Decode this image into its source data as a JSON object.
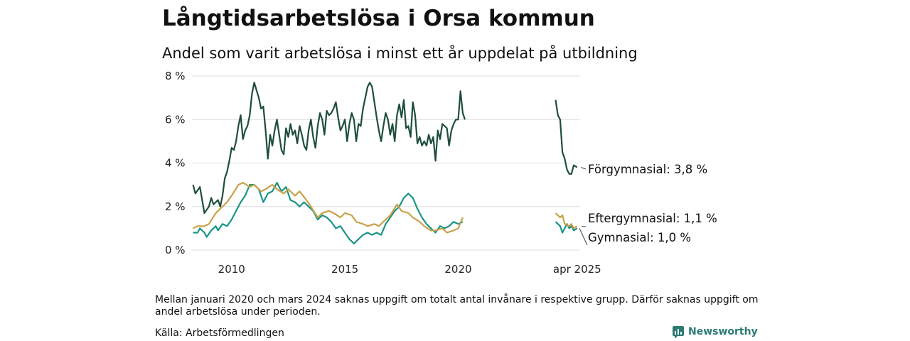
{
  "header": {
    "title": "Långtidsarbetslösa i Orsa kommun",
    "subtitle": "Andel som varit arbetslösa i minst ett år uppdelat på utbildning"
  },
  "footer": {
    "note": "Mellan januari 2020 och mars 2024 saknas uppgift om totalt antal invånare i respektive grupp. Därför saknas uppgift om andel arbetslösa under perioden.",
    "source": "Källa: Arbetsförmedlingen",
    "brand": "Newsworthy"
  },
  "colors": {
    "forgymnasial": "#1e4d3f",
    "gymnasial": "#199488",
    "eftergymnasial": "#c9a24a",
    "grid": "#dddddd",
    "brand": "#2c7a73"
  },
  "chart_data": {
    "type": "line",
    "ylim": [
      0,
      8
    ],
    "yticks": [
      "0 %",
      "2 %",
      "4 %",
      "6 %",
      "8 %"
    ],
    "xticks": [
      "2010",
      "2015",
      "2020",
      "apr 2025"
    ],
    "grid": true,
    "series": [
      {
        "name": "Förgymnasial",
        "end_label": "Förgymnasial: 3,8 %",
        "color_key": "forgymnasial",
        "segments": [
          [
            [
              2008.3,
              3.0
            ],
            [
              2008.4,
              2.6
            ],
            [
              2008.6,
              2.9
            ],
            [
              2008.8,
              1.7
            ],
            [
              2009.0,
              2.0
            ],
            [
              2009.1,
              2.4
            ],
            [
              2009.2,
              2.1
            ],
            [
              2009.4,
              2.3
            ],
            [
              2009.5,
              2.0
            ],
            [
              2009.6,
              2.5
            ],
            [
              2009.7,
              3.3
            ],
            [
              2009.8,
              3.6
            ],
            [
              2009.9,
              4.1
            ],
            [
              2010.0,
              4.7
            ],
            [
              2010.1,
              4.6
            ],
            [
              2010.2,
              5.0
            ],
            [
              2010.3,
              5.7
            ],
            [
              2010.4,
              6.2
            ],
            [
              2010.5,
              5.1
            ],
            [
              2010.6,
              5.5
            ],
            [
              2010.7,
              5.7
            ],
            [
              2010.8,
              6.2
            ],
            [
              2010.9,
              7.2
            ],
            [
              2011.0,
              7.7
            ],
            [
              2011.2,
              7.0
            ],
            [
              2011.3,
              6.5
            ],
            [
              2011.4,
              6.6
            ],
            [
              2011.5,
              5.5
            ],
            [
              2011.6,
              4.2
            ],
            [
              2011.7,
              5.3
            ],
            [
              2011.8,
              4.8
            ],
            [
              2011.9,
              5.5
            ],
            [
              2012.0,
              6.0
            ],
            [
              2012.1,
              5.3
            ],
            [
              2012.2,
              4.6
            ],
            [
              2012.3,
              4.4
            ],
            [
              2012.4,
              5.6
            ],
            [
              2012.5,
              5.2
            ],
            [
              2012.6,
              5.8
            ],
            [
              2012.7,
              5.3
            ],
            [
              2012.8,
              5.5
            ],
            [
              2012.9,
              4.9
            ],
            [
              2013.0,
              5.7
            ],
            [
              2013.1,
              5.3
            ],
            [
              2013.2,
              4.8
            ],
            [
              2013.3,
              4.6
            ],
            [
              2013.4,
              5.5
            ],
            [
              2013.5,
              6.0
            ],
            [
              2013.6,
              5.2
            ],
            [
              2013.7,
              4.7
            ],
            [
              2013.8,
              5.7
            ],
            [
              2013.9,
              6.3
            ],
            [
              2014.0,
              6.0
            ],
            [
              2014.1,
              5.3
            ],
            [
              2014.2,
              6.4
            ],
            [
              2014.3,
              6.2
            ],
            [
              2014.4,
              6.3
            ],
            [
              2014.5,
              6.5
            ],
            [
              2014.6,
              6.8
            ],
            [
              2014.7,
              6.1
            ],
            [
              2014.8,
              5.5
            ],
            [
              2014.9,
              5.7
            ],
            [
              2015.0,
              6.0
            ],
            [
              2015.1,
              5.0
            ],
            [
              2015.2,
              5.8
            ],
            [
              2015.3,
              6.3
            ],
            [
              2015.4,
              6.0
            ],
            [
              2015.5,
              5.0
            ],
            [
              2015.6,
              5.8
            ],
            [
              2015.7,
              5.7
            ],
            [
              2015.8,
              6.5
            ],
            [
              2015.9,
              7.0
            ],
            [
              2016.0,
              7.5
            ],
            [
              2016.1,
              7.7
            ],
            [
              2016.2,
              7.5
            ],
            [
              2016.3,
              6.8
            ],
            [
              2016.4,
              6.1
            ],
            [
              2016.5,
              5.5
            ],
            [
              2016.6,
              5.0
            ],
            [
              2016.7,
              5.7
            ],
            [
              2016.8,
              6.3
            ],
            [
              2016.9,
              6.0
            ],
            [
              2017.0,
              5.3
            ],
            [
              2017.1,
              5.8
            ],
            [
              2017.2,
              5.0
            ],
            [
              2017.3,
              6.2
            ],
            [
              2017.4,
              6.7
            ],
            [
              2017.5,
              6.1
            ],
            [
              2017.6,
              6.9
            ],
            [
              2017.7,
              5.6
            ],
            [
              2017.8,
              5.7
            ],
            [
              2017.9,
              5.2
            ],
            [
              2018.0,
              6.8
            ],
            [
              2018.1,
              6.2
            ],
            [
              2018.2,
              4.9
            ],
            [
              2018.3,
              5.2
            ],
            [
              2018.4,
              4.8
            ],
            [
              2018.5,
              5.0
            ],
            [
              2018.6,
              4.8
            ],
            [
              2018.7,
              5.3
            ],
            [
              2018.8,
              4.9
            ],
            [
              2018.9,
              5.2
            ],
            [
              2019.0,
              4.1
            ],
            [
              2019.1,
              5.5
            ],
            [
              2019.2,
              5.1
            ],
            [
              2019.3,
              5.8
            ],
            [
              2019.4,
              5.7
            ],
            [
              2019.5,
              5.6
            ],
            [
              2019.6,
              4.8
            ],
            [
              2019.7,
              5.5
            ],
            [
              2019.8,
              5.8
            ],
            [
              2019.9,
              6.0
            ],
            [
              2020.0,
              6.0
            ],
            [
              2020.1,
              7.3
            ],
            [
              2020.2,
              6.3
            ],
            [
              2020.3,
              6.0
            ]
          ],
          [
            [
              2024.3,
              6.9
            ],
            [
              2024.4,
              6.2
            ],
            [
              2024.5,
              6.0
            ],
            [
              2024.6,
              4.5
            ],
            [
              2024.7,
              4.2
            ],
            [
              2024.8,
              3.7
            ],
            [
              2024.9,
              3.5
            ],
            [
              2025.0,
              3.5
            ],
            [
              2025.1,
              3.9
            ],
            [
              2025.25,
              3.8
            ]
          ]
        ]
      },
      {
        "name": "Gymnasial",
        "end_label": "Gymnasial: 1,0 %",
        "color_key": "gymnasial",
        "segments": [
          [
            [
              2008.3,
              0.8
            ],
            [
              2008.5,
              0.8
            ],
            [
              2008.6,
              1.0
            ],
            [
              2008.8,
              0.8
            ],
            [
              2008.9,
              0.6
            ],
            [
              2009.1,
              0.9
            ],
            [
              2009.3,
              1.1
            ],
            [
              2009.4,
              0.9
            ],
            [
              2009.6,
              1.2
            ],
            [
              2009.8,
              1.1
            ],
            [
              2010.0,
              1.4
            ],
            [
              2010.2,
              1.8
            ],
            [
              2010.4,
              2.2
            ],
            [
              2010.6,
              2.5
            ],
            [
              2010.8,
              3.0
            ],
            [
              2011.0,
              3.0
            ],
            [
              2011.2,
              2.8
            ],
            [
              2011.4,
              2.2
            ],
            [
              2011.6,
              2.6
            ],
            [
              2011.8,
              2.7
            ],
            [
              2012.0,
              3.1
            ],
            [
              2012.2,
              2.7
            ],
            [
              2012.4,
              2.9
            ],
            [
              2012.6,
              2.3
            ],
            [
              2012.8,
              2.2
            ],
            [
              2013.0,
              2.0
            ],
            [
              2013.2,
              2.2
            ],
            [
              2013.4,
              2.0
            ],
            [
              2013.6,
              1.8
            ],
            [
              2013.8,
              1.4
            ],
            [
              2014.0,
              1.6
            ],
            [
              2014.2,
              1.5
            ],
            [
              2014.4,
              1.3
            ],
            [
              2014.6,
              1.0
            ],
            [
              2014.8,
              1.1
            ],
            [
              2015.0,
              0.8
            ],
            [
              2015.2,
              0.5
            ],
            [
              2015.4,
              0.3
            ],
            [
              2015.6,
              0.5
            ],
            [
              2015.8,
              0.7
            ],
            [
              2016.0,
              0.8
            ],
            [
              2016.2,
              0.7
            ],
            [
              2016.4,
              0.8
            ],
            [
              2016.6,
              0.7
            ],
            [
              2016.8,
              1.2
            ],
            [
              2017.0,
              1.5
            ],
            [
              2017.2,
              1.8
            ],
            [
              2017.4,
              2.0
            ],
            [
              2017.6,
              2.4
            ],
            [
              2017.8,
              2.6
            ],
            [
              2018.0,
              2.4
            ],
            [
              2018.2,
              1.9
            ],
            [
              2018.4,
              1.5
            ],
            [
              2018.6,
              1.2
            ],
            [
              2018.8,
              1.0
            ],
            [
              2019.0,
              0.8
            ],
            [
              2019.2,
              1.1
            ],
            [
              2019.4,
              1.0
            ],
            [
              2019.6,
              1.1
            ],
            [
              2019.8,
              1.3
            ],
            [
              2020.0,
              1.2
            ],
            [
              2020.2,
              1.3
            ]
          ],
          [
            [
              2024.3,
              1.3
            ],
            [
              2024.5,
              1.1
            ],
            [
              2024.6,
              0.8
            ],
            [
              2024.7,
              1.0
            ],
            [
              2024.8,
              1.2
            ],
            [
              2024.9,
              1.0
            ],
            [
              2025.0,
              1.1
            ],
            [
              2025.1,
              0.9
            ],
            [
              2025.25,
              1.0
            ]
          ]
        ]
      },
      {
        "name": "Eftergymnasial",
        "end_label": "Eftergymnasial: 1,1 %",
        "color_key": "eftergymnasial",
        "segments": [
          [
            [
              2008.3,
              1.0
            ],
            [
              2008.5,
              1.1
            ],
            [
              2008.8,
              1.1
            ],
            [
              2009.0,
              1.2
            ],
            [
              2009.3,
              1.7
            ],
            [
              2009.5,
              1.9
            ],
            [
              2009.8,
              2.2
            ],
            [
              2010.0,
              2.5
            ],
            [
              2010.3,
              3.0
            ],
            [
              2010.5,
              3.1
            ],
            [
              2010.8,
              2.9
            ],
            [
              2011.0,
              3.0
            ],
            [
              2011.3,
              2.7
            ],
            [
              2011.5,
              2.8
            ],
            [
              2011.8,
              3.0
            ],
            [
              2012.0,
              2.8
            ],
            [
              2012.3,
              2.6
            ],
            [
              2012.5,
              2.8
            ],
            [
              2012.8,
              2.5
            ],
            [
              2013.0,
              2.7
            ],
            [
              2013.3,
              2.3
            ],
            [
              2013.5,
              2.0
            ],
            [
              2013.8,
              1.5
            ],
            [
              2014.0,
              1.7
            ],
            [
              2014.3,
              1.8
            ],
            [
              2014.5,
              1.7
            ],
            [
              2014.8,
              1.5
            ],
            [
              2015.0,
              1.7
            ],
            [
              2015.3,
              1.6
            ],
            [
              2015.5,
              1.3
            ],
            [
              2015.8,
              1.2
            ],
            [
              2016.0,
              1.1
            ],
            [
              2016.3,
              1.2
            ],
            [
              2016.5,
              1.1
            ],
            [
              2016.8,
              1.4
            ],
            [
              2017.0,
              1.6
            ],
            [
              2017.3,
              2.1
            ],
            [
              2017.5,
              1.8
            ],
            [
              2017.8,
              1.7
            ],
            [
              2018.0,
              1.5
            ],
            [
              2018.3,
              1.3
            ],
            [
              2018.5,
              1.1
            ],
            [
              2018.8,
              0.9
            ],
            [
              2019.0,
              0.9
            ],
            [
              2019.3,
              1.0
            ],
            [
              2019.5,
              0.8
            ],
            [
              2019.8,
              0.9
            ],
            [
              2020.0,
              1.0
            ],
            [
              2020.2,
              1.5
            ]
          ],
          [
            [
              2024.3,
              1.7
            ],
            [
              2024.5,
              1.5
            ],
            [
              2024.6,
              1.6
            ],
            [
              2024.7,
              1.2
            ],
            [
              2024.9,
              1.1
            ],
            [
              2025.0,
              1.2
            ],
            [
              2025.1,
              1.0
            ],
            [
              2025.25,
              1.1
            ]
          ]
        ]
      }
    ]
  }
}
